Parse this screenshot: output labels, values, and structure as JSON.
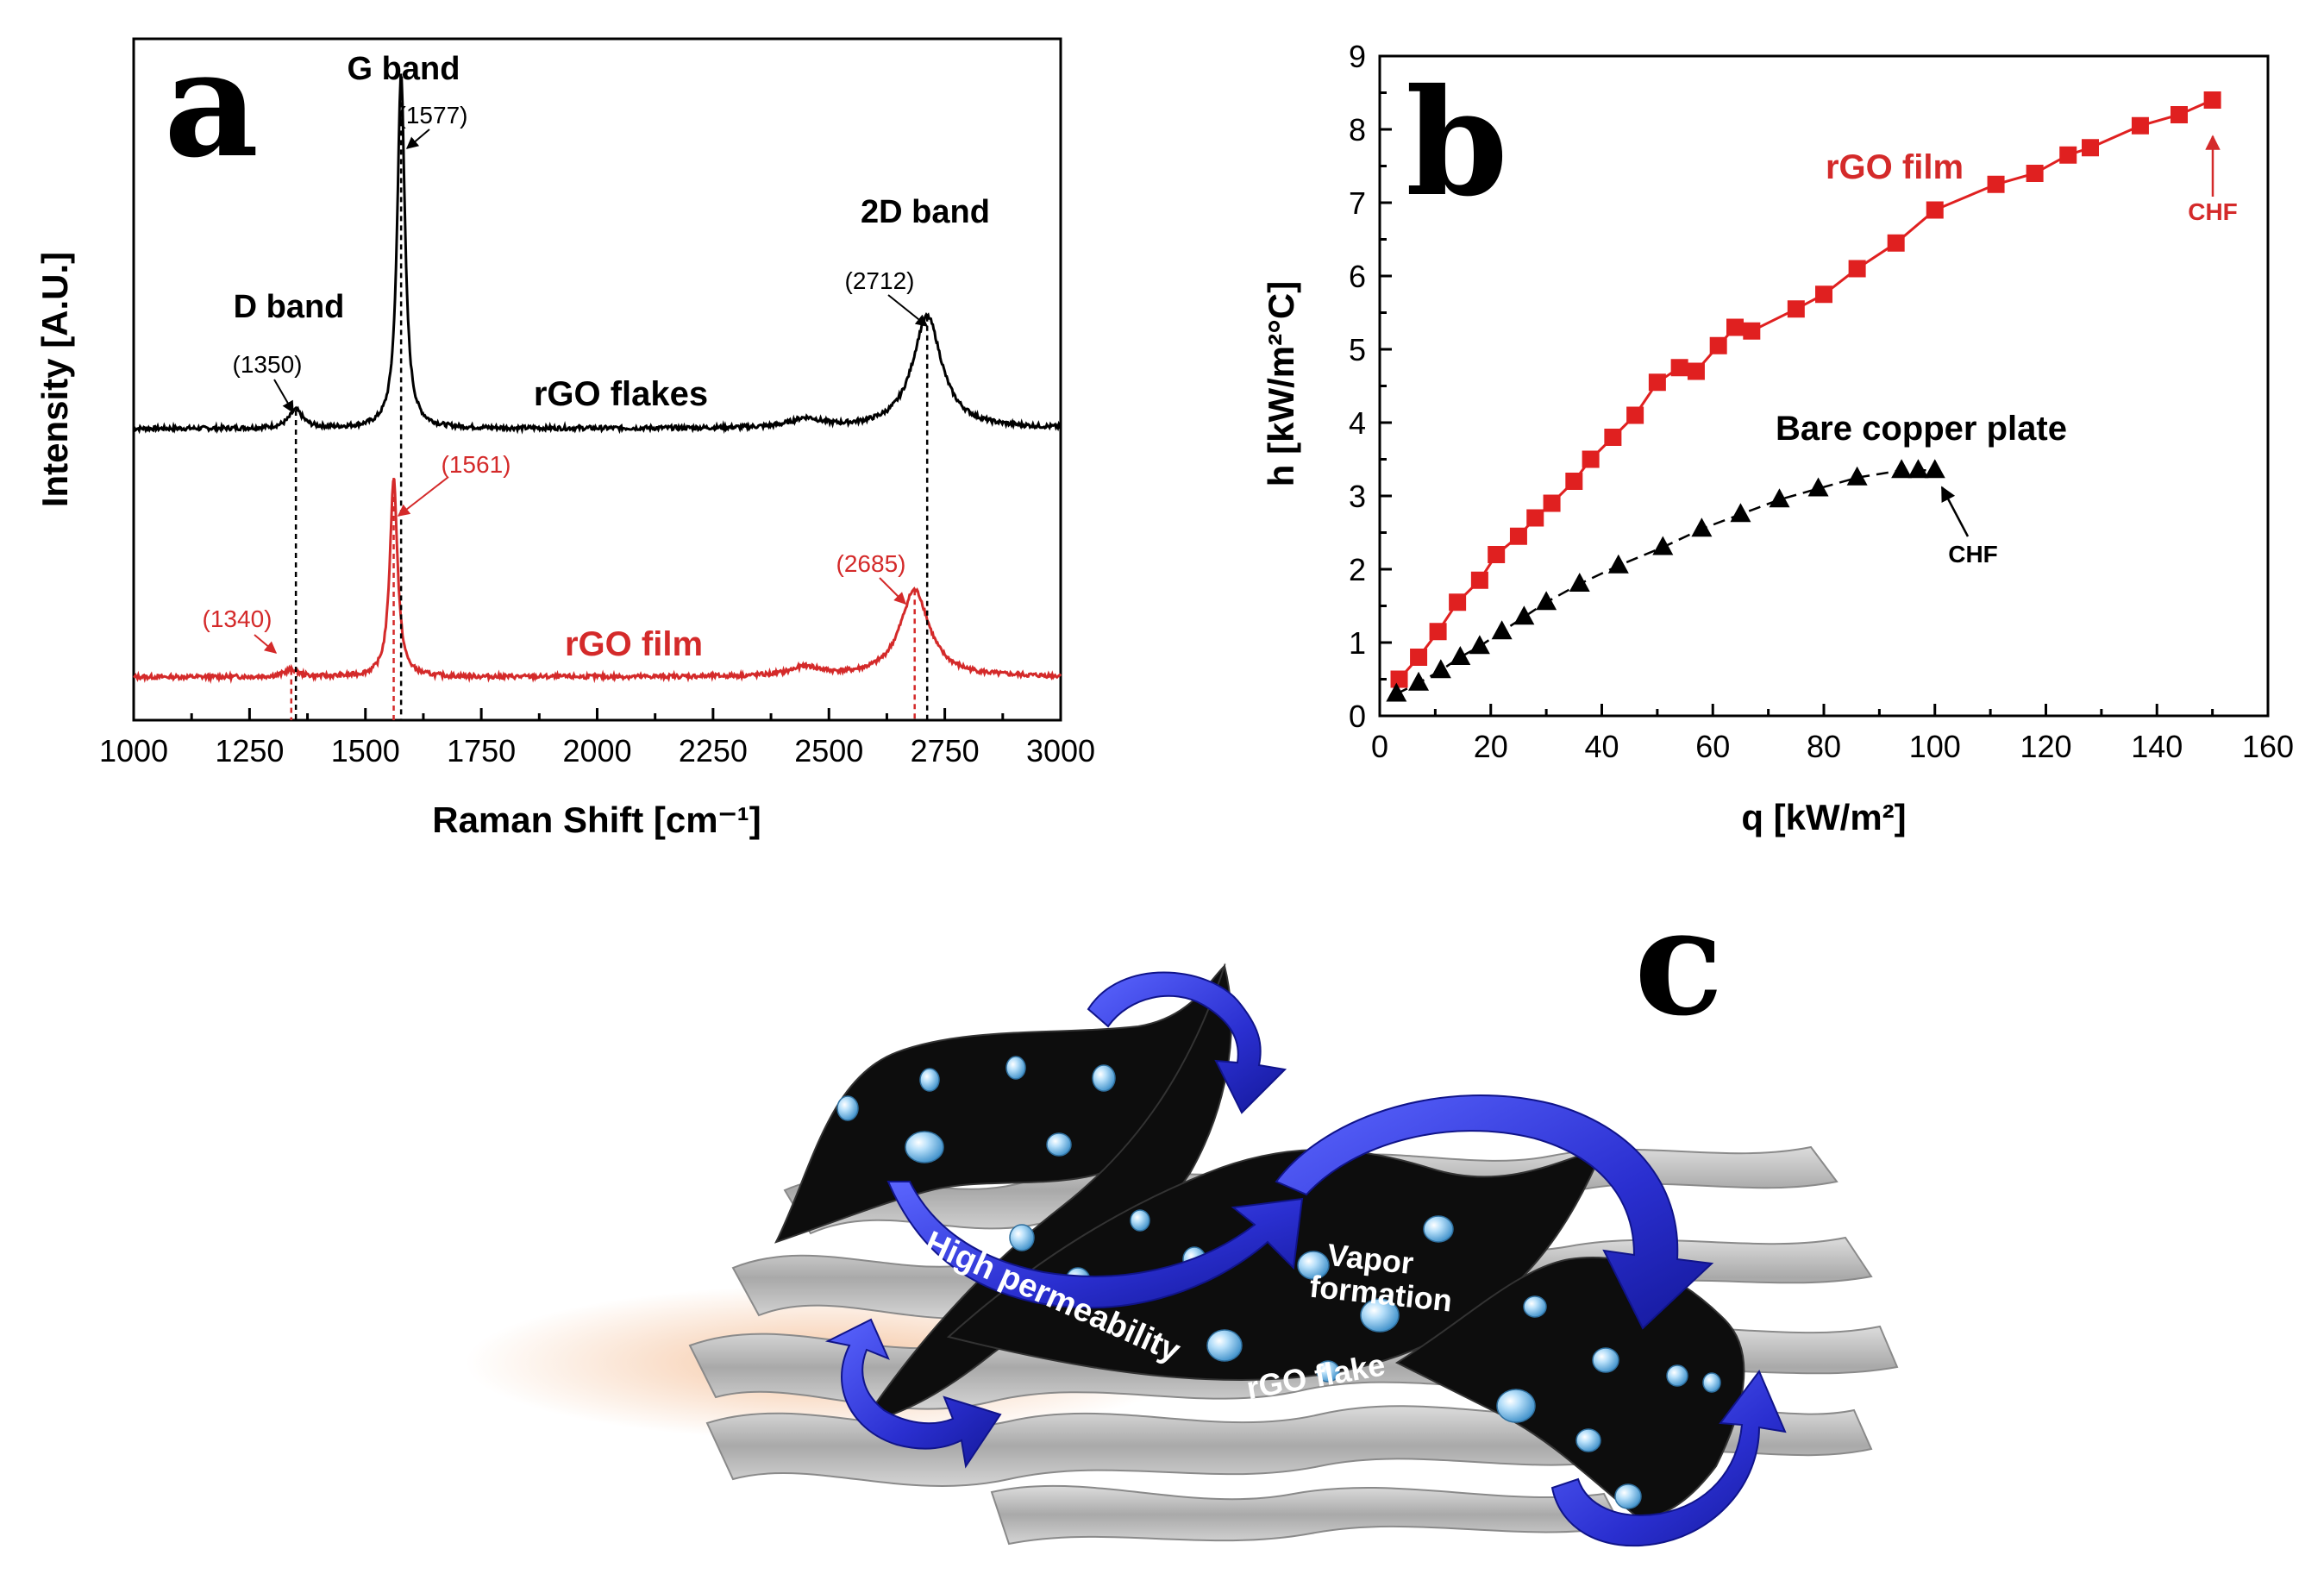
{
  "panels": {
    "a": "a",
    "b": "b",
    "c": "c"
  },
  "chart_data": [
    {
      "panel": "a",
      "type": "line",
      "xlabel": "Raman Shift [cm⁻¹]",
      "ylabel": "Intensity [A.U.]",
      "xlim": [
        1000,
        3000
      ],
      "x_ticks": [
        1000,
        1250,
        1500,
        1750,
        2000,
        2250,
        2500,
        2750,
        3000
      ],
      "y_ticks_shown": false,
      "grid": false,
      "band_labels": [
        {
          "text": "D band",
          "x": 1350
        },
        {
          "text": "G band",
          "x": 1577
        },
        {
          "text": "2D band",
          "x": 2712
        }
      ],
      "series": [
        {
          "name": "rGO flakes",
          "color": "#000000",
          "peaks": [
            {
              "label": "(1350)",
              "x": 1350,
              "rel_height": 0.05
            },
            {
              "label": "(1577)",
              "x": 1577,
              "rel_height": 0.98
            },
            {
              "label": "(2712)",
              "x": 2712,
              "rel_height": 0.31
            }
          ]
        },
        {
          "name": "rGO film",
          "color": "#d42a2a",
          "peaks": [
            {
              "label": "(1340)",
              "x": 1340,
              "rel_height": 0.02
            },
            {
              "label": "(1561)",
              "x": 1561,
              "rel_height": 0.55
            },
            {
              "label": "(2685)",
              "x": 2685,
              "rel_height": 0.24
            }
          ]
        }
      ]
    },
    {
      "panel": "b",
      "type": "scatter",
      "xlabel": "q [kW/m²]",
      "ylabel": "h [kW/m²°C]",
      "xlim": [
        0,
        160
      ],
      "ylim": [
        0,
        9
      ],
      "x_ticks": [
        0,
        20,
        40,
        60,
        80,
        100,
        120,
        140,
        160
      ],
      "y_ticks": [
        0,
        1,
        2,
        3,
        4,
        5,
        6,
        7,
        8,
        9
      ],
      "grid": false,
      "series": [
        {
          "name": "rGO film",
          "color": "#e02020",
          "marker": "square",
          "annotation": "CHF",
          "x": [
            3.5,
            7,
            10.5,
            14,
            18,
            21,
            25,
            28,
            31,
            35,
            38,
            42,
            46,
            50,
            54,
            57,
            61,
            64,
            67,
            75,
            80,
            86,
            93,
            100,
            111,
            118,
            124,
            128,
            137,
            144,
            150
          ],
          "y": [
            0.5,
            0.8,
            1.15,
            1.55,
            1.85,
            2.2,
            2.45,
            2.7,
            2.9,
            3.2,
            3.5,
            3.8,
            4.1,
            4.55,
            4.75,
            4.7,
            5.05,
            5.3,
            5.25,
            5.55,
            5.75,
            6.1,
            6.45,
            6.9,
            7.25,
            7.4,
            7.65,
            7.75,
            8.05,
            8.2,
            8.4
          ]
        },
        {
          "name": "Bare copper plate",
          "color": "#000000",
          "marker": "triangle",
          "annotation": "CHF",
          "x": [
            3,
            7,
            11,
            14.5,
            18,
            22,
            26,
            30,
            36,
            43,
            51,
            58,
            65,
            72,
            79,
            86,
            94,
            97,
            100
          ],
          "y": [
            0.3,
            0.45,
            0.62,
            0.8,
            0.95,
            1.15,
            1.35,
            1.55,
            1.8,
            2.05,
            2.3,
            2.55,
            2.75,
            2.95,
            3.1,
            3.25,
            3.35,
            3.35,
            3.35
          ]
        }
      ]
    }
  ],
  "illustration": {
    "labels": {
      "high_permeability": "High permeability",
      "vapor": "Vapor",
      "formation": "formation",
      "rgo_flake": "rGO flake"
    },
    "colors": {
      "sheet": "#0d0d0d",
      "mesh": "#b9b9b9",
      "arrow": "#2b2fd6",
      "droplet": "#8cc6ee"
    }
  }
}
